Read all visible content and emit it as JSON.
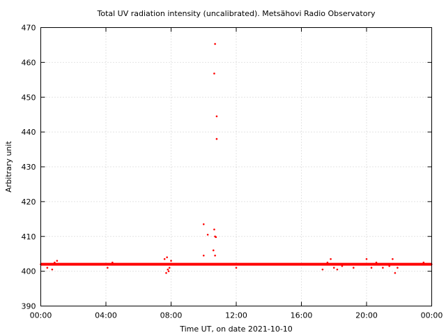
{
  "chart_data": {
    "type": "scatter",
    "title": "Total UV radiation intensity (uncalibrated). Metsähovi Radio Observatory",
    "xlabel": "Time UT, on date 2021-10-10",
    "ylabel": "Arbitrary unit",
    "xlim_hours": [
      0,
      24
    ],
    "ylim": [
      390,
      470
    ],
    "x_tick_labels": [
      "00:00",
      "04:00",
      "08:00",
      "12:00",
      "16:00",
      "20:00",
      "00:00"
    ],
    "y_ticks": [
      390,
      400,
      410,
      420,
      430,
      440,
      450,
      460,
      470
    ],
    "grid": true,
    "marker_color": "#ff0000",
    "series": [
      {
        "x_hours": [
          0.0,
          0.25,
          0.5,
          0.75,
          1.0,
          1.5,
          2.0,
          2.5,
          3.0,
          3.5,
          4.0,
          4.25,
          4.5,
          5.0,
          5.5,
          6.0,
          6.5,
          7.0,
          7.5,
          7.65,
          7.75,
          7.85,
          8.0,
          8.5,
          9.0,
          9.5,
          10.0,
          10.5,
          11.0,
          11.5,
          12.0,
          12.5,
          13.0,
          13.5,
          14.0,
          14.5,
          15.0,
          15.5,
          16.0,
          16.5,
          17.0,
          17.25,
          17.5,
          17.75,
          18.0,
          18.25,
          18.5,
          19.0,
          19.5,
          20.0,
          20.25,
          20.5,
          21.0,
          21.25,
          21.5,
          21.75,
          22.0,
          22.5,
          23.0,
          23.5,
          23.99
        ],
        "y": [
          402,
          402,
          402,
          402,
          402,
          402,
          402,
          402,
          402,
          402,
          402,
          402,
          402,
          402,
          402,
          402,
          402,
          402,
          402,
          402,
          402,
          402,
          402,
          402,
          402,
          402,
          402,
          402,
          402,
          402,
          402,
          402,
          402,
          402,
          402,
          402,
          402,
          402,
          402,
          402,
          402,
          402,
          402,
          402,
          402,
          402,
          402,
          402,
          402,
          402,
          402,
          402,
          402,
          402,
          402,
          402,
          402,
          402,
          402,
          402,
          402
        ]
      },
      {
        "x_hours": [
          0.4,
          0.7,
          0.85,
          1.0,
          4.1,
          4.4,
          7.6,
          7.7,
          7.8,
          7.9,
          8.0,
          7.75,
          7.85,
          12.0,
          17.3,
          17.6,
          17.8,
          18.0,
          18.2,
          18.5,
          19.2,
          20.0,
          20.3,
          20.6,
          21.0,
          21.4,
          21.6,
          21.75,
          21.9,
          23.5
        ],
        "y": [
          401,
          400.5,
          402.5,
          403,
          401,
          402.5,
          403.5,
          399.5,
          400.5,
          401,
          403,
          404,
          400,
          401,
          400.5,
          402.5,
          403.5,
          401,
          400.5,
          401.5,
          401,
          403.5,
          401,
          402.5,
          401,
          401.5,
          403.5,
          399.5,
          401,
          402.5
        ]
      },
      {
        "x_hours": [
          10.0,
          10.0,
          10.25,
          10.6,
          10.65,
          10.7,
          10.7,
          10.75,
          10.8,
          10.8,
          10.65,
          10.7
        ],
        "y": [
          404.5,
          413.5,
          410.5,
          406,
          412,
          410,
          404.5,
          409.8,
          438,
          444.5,
          456.8,
          465.3
        ]
      }
    ]
  }
}
